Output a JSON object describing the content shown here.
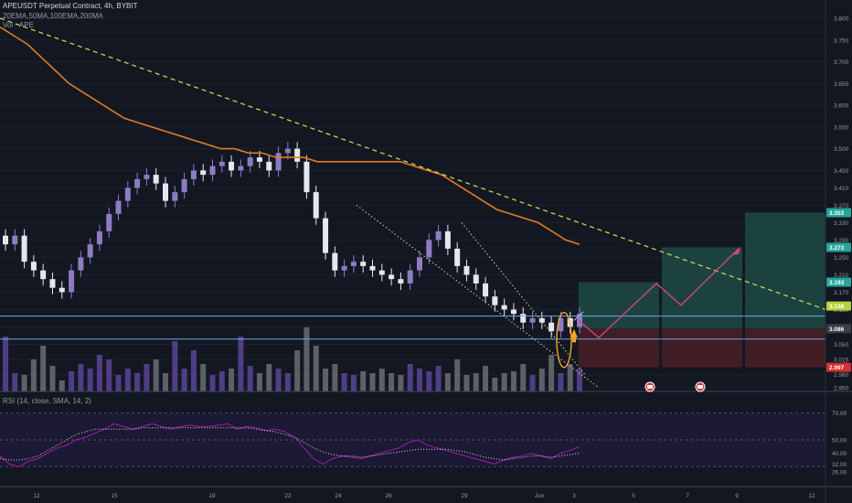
{
  "chart_info": {
    "title": "APEUSDT Perpetual Contract, 4h, BYBIT",
    "indicators_label": "20EMA,50MA,100EMA,200MA",
    "volume_label": "Vol · APE",
    "rsi_label": "RSI (14, close, SMA, 14, 2)"
  },
  "colors": {
    "background": "#131722",
    "up_candle": "#8e7cc3",
    "down_candle": "#e6e6ee",
    "ma_line": "#e07b22",
    "trend_line": "#d4e157",
    "support_line": "#6fa8dc",
    "rsi_line": "#a21caf",
    "target_zone": "#1f4a45",
    "stop_zone": "#4a1f26",
    "projection": "#e0457b"
  },
  "price_axis": {
    "ticks": [
      "3.800",
      "3.750",
      "3.700",
      "3.650",
      "3.600",
      "3.550",
      "3.500",
      "3.450",
      "3.410",
      "3.370",
      "3.330",
      "3.290",
      "3.250",
      "3.210",
      "3.170",
      "3.130",
      "3.090",
      "3.050",
      "3.015",
      "2.980",
      "2.950"
    ],
    "price_tags": [
      {
        "value": "3.353",
        "color": "#26a69a"
      },
      {
        "value": "3.273",
        "color": "#26a69a"
      },
      {
        "value": "3.193",
        "color": "#26a69a"
      },
      {
        "value": "3.138",
        "color": "#b8d23a"
      },
      {
        "value": "3.086",
        "color": "#3a3e4a"
      },
      {
        "value": "2.997",
        "color": "#d32f2f"
      }
    ]
  },
  "rsi_axis": {
    "ticks": [
      "70.00",
      "50.00",
      "40.00",
      "32.00",
      "26.00"
    ]
  },
  "time_axis": {
    "labels": [
      "12",
      "15",
      "19",
      "22",
      "24",
      "26",
      "29",
      "Jun",
      "3",
      "5",
      "7",
      "9",
      "12"
    ]
  },
  "chart_data": {
    "type": "candlestick",
    "symbol": "APEUSDT",
    "exchange": "BYBIT",
    "timeframe": "4h",
    "ylim": [
      2.95,
      3.8
    ],
    "rsi_levels": [
      70,
      50,
      30
    ],
    "ma_200": [
      3.78,
      3.76,
      3.74,
      3.71,
      3.68,
      3.65,
      3.63,
      3.61,
      3.59,
      3.57,
      3.56,
      3.55,
      3.54,
      3.53,
      3.52,
      3.51,
      3.5,
      3.5,
      3.49,
      3.49,
      3.48,
      3.48,
      3.48,
      3.47,
      3.47,
      3.47,
      3.47,
      3.47,
      3.47,
      3.47,
      3.46,
      3.45,
      3.44,
      3.42,
      3.4,
      3.38,
      3.36,
      3.35,
      3.34,
      3.33,
      3.31,
      3.29,
      3.28
    ],
    "close_prices": [
      3.28,
      3.3,
      3.24,
      3.22,
      3.2,
      3.18,
      3.17,
      3.22,
      3.25,
      3.28,
      3.31,
      3.35,
      3.38,
      3.41,
      3.43,
      3.44,
      3.42,
      3.38,
      3.4,
      3.43,
      3.45,
      3.44,
      3.46,
      3.47,
      3.45,
      3.46,
      3.48,
      3.47,
      3.45,
      3.49,
      3.5,
      3.47,
      3.4,
      3.34,
      3.26,
      3.22,
      3.23,
      3.24,
      3.23,
      3.22,
      3.21,
      3.2,
      3.19,
      3.22,
      3.25,
      3.29,
      3.31,
      3.27,
      3.23,
      3.21,
      3.19,
      3.16,
      3.14,
      3.13,
      3.12,
      3.1,
      3.11,
      3.1,
      3.08,
      3.11,
      3.09,
      3.12
    ],
    "rsi_values": [
      38,
      32,
      30,
      34,
      36,
      40,
      44,
      46,
      50,
      52,
      55,
      58,
      62,
      60,
      58,
      60,
      62,
      60,
      58,
      60,
      61,
      60,
      60,
      61,
      62,
      58,
      60,
      59,
      57,
      58,
      56,
      52,
      44,
      36,
      32,
      36,
      38,
      37,
      36,
      38,
      40,
      42,
      44,
      48,
      50,
      46,
      44,
      42,
      40,
      38,
      36,
      34,
      32,
      35,
      37,
      38,
      40,
      38,
      36,
      40,
      42,
      45
    ],
    "rsi_sma": [
      36,
      35,
      35,
      36,
      38,
      42,
      46,
      50,
      54,
      56,
      58,
      58,
      58,
      58,
      58,
      59,
      59,
      59,
      59,
      59,
      59,
      59,
      59,
      59,
      59,
      59,
      59,
      58,
      57,
      56,
      54,
      52,
      48,
      44,
      41,
      39,
      38,
      38,
      37,
      38,
      39,
      40,
      41,
      42,
      43,
      43,
      43,
      43,
      42,
      41,
      39,
      37,
      36,
      35,
      36,
      37,
      38,
      38,
      37,
      38,
      39,
      40
    ],
    "trade_setup": {
      "targets": [
        "3.193",
        "3.273",
        "3.353"
      ],
      "entry": "3.086",
      "stop": "2.997"
    }
  }
}
